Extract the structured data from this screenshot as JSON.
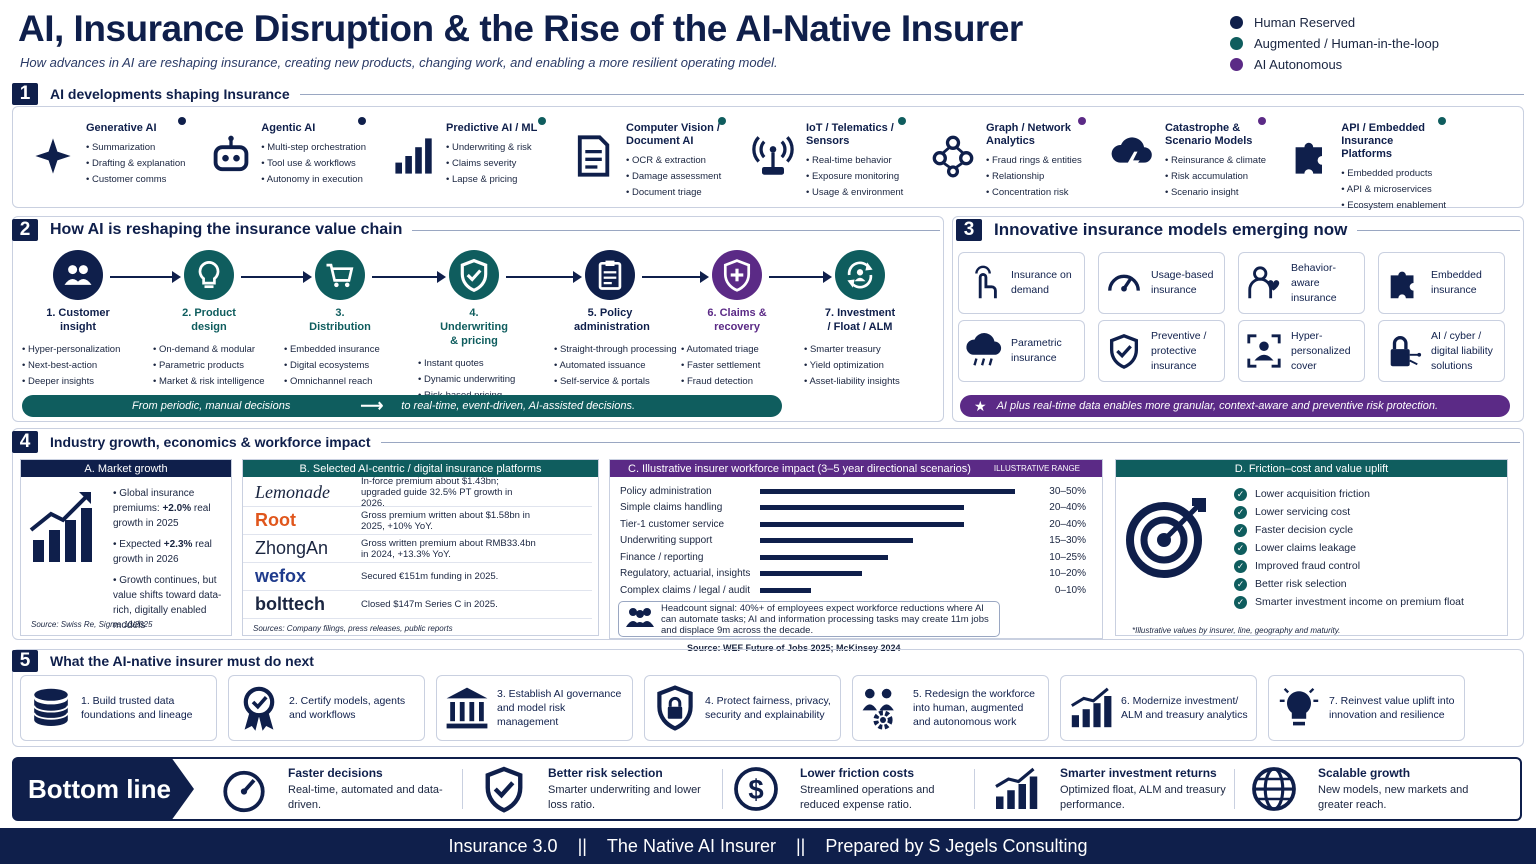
{
  "header": {
    "title": "AI, Insurance Disruption & the Rise of the AI-Native Insurer",
    "subtitle": "How advances in AI are reshaping insurance, creating new products, changing work, and enabling a more resilient operating model."
  },
  "legend": [
    {
      "label": "Human Reserved",
      "color": "#0f1f4b"
    },
    {
      "label": "Augmented / Human-in-the-loop",
      "color": "#0f5d5e"
    },
    {
      "label": "AI Autonomous",
      "color": "#5b2a86"
    }
  ],
  "section1": {
    "num": "1",
    "title": "AI developments shaping Insurance",
    "cards": [
      {
        "title": "Generative AI",
        "items": [
          "Summarization",
          "Drafting & explanation",
          "Customer comms"
        ],
        "icon": "sparkle-icon"
      },
      {
        "title": "Agentic AI",
        "items": [
          "Multi-step orchestration",
          "Tool use & workflows",
          "Autonomy in execution"
        ],
        "icon": "robot-icon"
      },
      {
        "title": "Predictive AI / ML",
        "items": [
          "Underwriting & risk",
          "Claims severity",
          "Lapse & pricing"
        ],
        "icon": "bar-chart-icon"
      },
      {
        "title": "Computer Vision / Document AI",
        "items": [
          "OCR & extraction",
          "Damage assessment",
          "Document triage"
        ],
        "icon": "document-icon"
      },
      {
        "title": "IoT / Telematics / Sensors",
        "items": [
          "Real-time behavior",
          "Exposure monitoring",
          "Usage & environment"
        ],
        "icon": "antenna-icon"
      },
      {
        "title": "Graph / Network Analytics",
        "items": [
          "Fraud rings & entities",
          "Relationship",
          "Concentration risk"
        ],
        "icon": "network-icon"
      },
      {
        "title": "Catastrophe & Scenario Models",
        "items": [
          "Reinsurance & climate",
          "Risk accumulation",
          "Scenario insight"
        ],
        "icon": "storm-cloud-icon"
      },
      {
        "title": "API / Embedded Insurance Platforms",
        "items": [
          "Embedded products",
          "API & microservices",
          "Ecosystem enablement"
        ],
        "icon": "puzzle-icon"
      }
    ]
  },
  "section2": {
    "num": "2",
    "title": "How AI is reshaping the insurance value chain",
    "steps": [
      {
        "label": "1. Customer insight",
        "items": [
          "Hyper-personalization",
          "Next-best-action",
          "Deeper insights"
        ],
        "icon": "users-icon"
      },
      {
        "label": "2. Product design",
        "items": [
          "On-demand & modular",
          "Parametric products",
          "Market & risk intelligence"
        ],
        "icon": "lightbulb-icon"
      },
      {
        "label": "3. Distribution",
        "items": [
          "Embedded insurance",
          "Digital ecosystems",
          "Omnichannel reach"
        ],
        "icon": "cart-icon"
      },
      {
        "label": "4. Underwriting & pricing",
        "items": [
          "Instant quotes",
          "Dynamic underwriting",
          "Risk-based pricing"
        ],
        "icon": "shield-check-icon"
      },
      {
        "label": "5. Policy administration",
        "items": [
          "Straight-through processing",
          "Automated issuance",
          "Self-service & portals"
        ],
        "icon": "clipboard-icon"
      },
      {
        "label": "6. Claims & recovery",
        "items": [
          "Automated triage",
          "Faster settlement",
          "Fraud detection"
        ],
        "icon": "shield-plus-icon"
      },
      {
        "label": "7. Investment / Float / ALM",
        "items": [
          "Smarter treasury",
          "Yield optimization",
          "Asset-liability insights"
        ],
        "icon": "cycle-icon"
      }
    ],
    "banner_left": "From periodic, manual decisions",
    "banner_right": "to real-time, event-driven, AI-assisted decisions."
  },
  "section3": {
    "num": "3",
    "title": "Innovative insurance models emerging now",
    "models": [
      {
        "label": "Insurance on demand",
        "icon": "tap-icon"
      },
      {
        "label": "Usage-based insurance",
        "icon": "gauge-icon"
      },
      {
        "label": "Behavior-aware insurance",
        "icon": "person-heart-icon"
      },
      {
        "label": "Embedded insurance",
        "icon": "puzzle-icon"
      },
      {
        "label": "Parametric insurance",
        "icon": "rain-cloud-icon"
      },
      {
        "label": "Preventive / protective insurance",
        "icon": "shield-check-icon"
      },
      {
        "label": "Hyper-personalized cover",
        "icon": "person-frame-icon"
      },
      {
        "label": "AI / cyber / digital liability solutions",
        "icon": "lock-circuit-icon"
      }
    ],
    "banner": "AI plus real-time data enables more granular, context-aware and preventive risk protection."
  },
  "section4": {
    "num": "4",
    "title": "Industry growth, economics & workforce impact",
    "market": {
      "header": "A. Market growth",
      "items": [
        {
          "pre": "Global insurance premiums: ",
          "bold": "+2.0%",
          "post": " real growth in 2025"
        },
        {
          "pre": "Expected ",
          "bold": "+2.3%",
          "post": " real growth in 2026"
        },
        {
          "pre": "Growth continues, but value shifts toward data-rich, digitally enabled models",
          "bold": "",
          "post": ""
        }
      ],
      "source": "Source: Swiss Re, Sigma 10/2025"
    },
    "platforms": {
      "header": "B. Selected AI-centric / digital insurance platforms",
      "rows": [
        {
          "name": "Lemonade",
          "desc": "In-force premium about $1.43bn; upgraded guide 32.5% PT growth in 2026."
        },
        {
          "name": "Root",
          "desc": "Gross premium written about $1.58bn in 2025, +10% YoY."
        },
        {
          "name": "ZhongAn",
          "desc": "Gross written premium about RMB33.4bn in 2024, +13.3% YoY."
        },
        {
          "name": "wefox",
          "desc": "Secured €151m funding in 2025."
        },
        {
          "name": "bolttech",
          "desc": "Closed $147m Series C in 2025."
        }
      ],
      "source": "Sources: Company filings, press releases, public reports"
    },
    "workforce": {
      "header": "C. Illustrative insurer workforce impact (3–5 year directional scenarios)",
      "tag": "ILLUSTRATIVE RANGE",
      "rows": [
        {
          "label": "Policy administration",
          "range": "30–50%",
          "value": 50
        },
        {
          "label": "Simple claims handling",
          "range": "20–40%",
          "value": 40
        },
        {
          "label": "Tier-1 customer service",
          "range": "20–40%",
          "value": 40
        },
        {
          "label": "Underwriting support",
          "range": "15–30%",
          "value": 30
        },
        {
          "label": "Finance / reporting",
          "range": "10–25%",
          "value": 25
        },
        {
          "label": "Regulatory, actuarial, insights",
          "range": "10–20%",
          "value": 20
        },
        {
          "label": "Complex claims / legal / audit",
          "range": "0–10%",
          "value": 10
        }
      ],
      "signal": "Headcount signal: 40%+ of employees expect workforce reductions where AI can automate tasks; AI and information processing tasks may create 11m jobs and displace 9m across the decade.",
      "source": "Source: WEF Future of Jobs 2025; McKinsey 2024"
    },
    "friction": {
      "header": "D. Friction–cost and value uplift",
      "items": [
        "Lower acquisition friction",
        "Lower servicing cost",
        "Faster decision cycle",
        "Lower claims leakage",
        "Improved fraud control",
        "Better risk selection",
        "Smarter investment income on premium float"
      ],
      "note": "*Illustrative values by insurer, line, geography and maturity."
    }
  },
  "section5": {
    "num": "5",
    "title": "What the AI-native insurer must do next",
    "items": [
      {
        "label": "1. Build trusted data foundations and lineage",
        "icon": "database-icon"
      },
      {
        "label": "2. Certify models, agents and workflows",
        "icon": "award-badge-icon"
      },
      {
        "label": "3. Establish AI governance and model risk management",
        "icon": "institution-icon"
      },
      {
        "label": "4. Protect fairness, privacy, security and explainability",
        "icon": "shield-lock-icon"
      },
      {
        "label": "5. Redesign the workforce into human, augmented and autonomous work",
        "icon": "team-gear-icon"
      },
      {
        "label": "6. Modernize investment/ ALM and treasury analytics",
        "icon": "growth-chart-icon"
      },
      {
        "label": "7. Reinvest value uplift into innovation and resilience",
        "icon": "idea-bulb-icon"
      }
    ]
  },
  "bottom_line": {
    "label": "Bottom line",
    "items": [
      {
        "title": "Faster decisions",
        "desc": "Real-time, automated and data-driven.",
        "icon": "speedometer-icon"
      },
      {
        "title": "Better risk selection",
        "desc": "Smarter underwriting and lower loss ratio.",
        "icon": "shield-check-icon"
      },
      {
        "title": "Lower friction costs",
        "desc": "Streamlined operations and reduced expense ratio.",
        "icon": "dollar-icon"
      },
      {
        "title": "Smarter investment returns",
        "desc": "Optimized float, ALM and treasury performance.",
        "icon": "growth-chart-icon"
      },
      {
        "title": "Scalable growth",
        "desc": "New models, new markets and greater reach.",
        "icon": "globe-icon"
      }
    ]
  },
  "footer": {
    "left": "Insurance 3.0",
    "sep": "||",
    "mid": "The Native AI Insurer",
    "right": "Prepared by S Jegels Consulting"
  }
}
